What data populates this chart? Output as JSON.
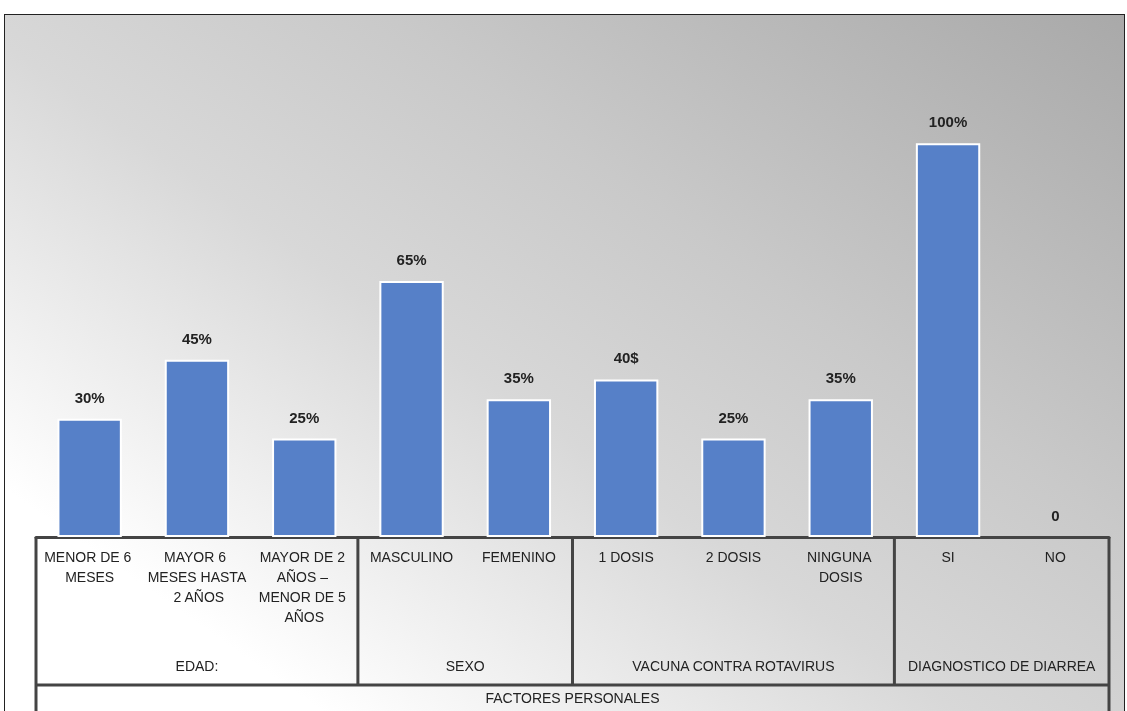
{
  "chart_data": {
    "type": "bar",
    "categories": [
      "MENOR DE 6 MESES",
      "MAYOR 6 MESES HASTA 2 AÑOS",
      "MAYOR DE 2 AÑOS – MENOR DE 5 AÑOS",
      "MASCULINO",
      "FEMENINO",
      "1 DOSIS",
      "2 DOSIS",
      "NINGUNA DOSIS",
      "SI",
      "NO"
    ],
    "values": [
      30,
      45,
      25,
      65,
      35,
      40,
      25,
      35,
      100,
      0
    ],
    "value_labels": [
      "30%",
      "45%",
      "25%",
      "65%",
      "35%",
      "40$",
      "25%",
      "35%",
      "100%",
      "0"
    ],
    "color": "#5680c8",
    "annotations": [
      "EDAD:",
      "SEXO",
      "VACUNA CONTRA ROTAVIRUS",
      "DIAGNOSTICO DE DIARREA",
      "FACTORES PERSONALES"
    ],
    "grid": false
  }
}
